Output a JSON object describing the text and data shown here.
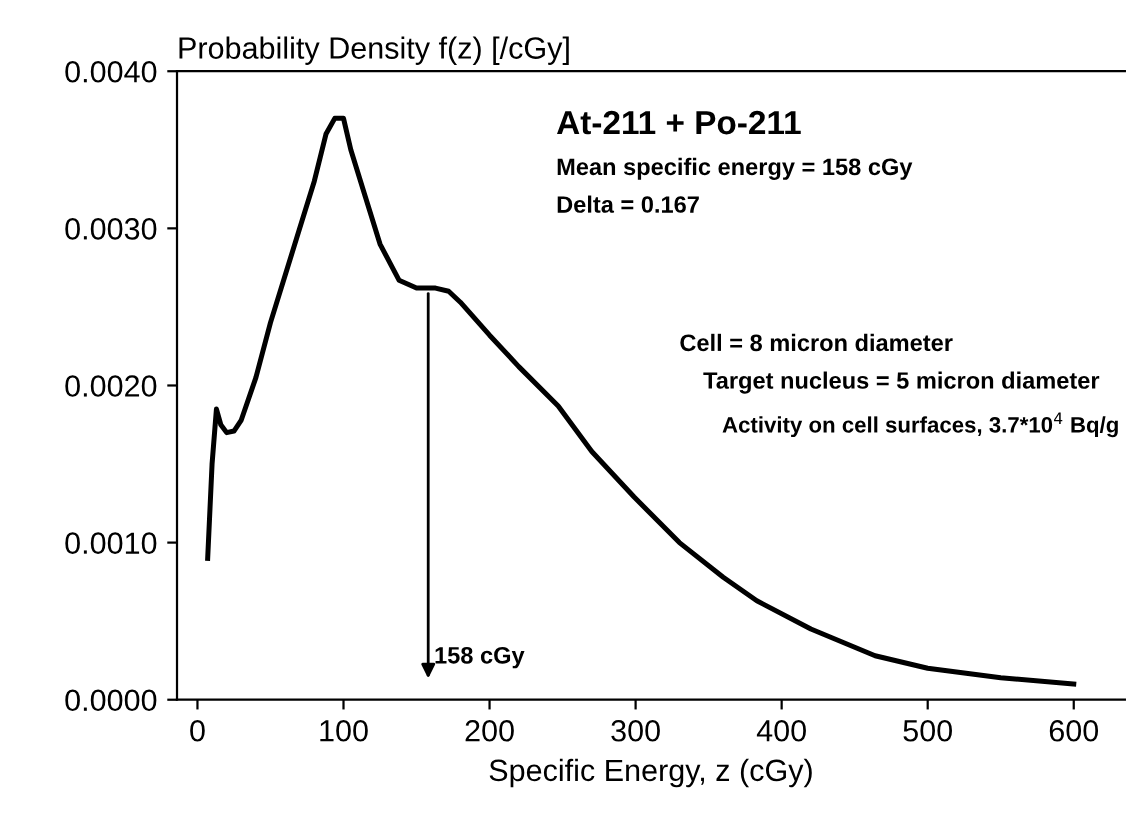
{
  "chart_data": {
    "type": "line",
    "ylabel": "Probability Density f(z) [/cGy]",
    "xlabel": "Specific Energy, z (cGy)",
    "x": [
      7,
      10,
      13,
      16,
      20,
      25,
      30,
      40,
      50,
      60,
      70,
      80,
      88,
      94,
      100,
      105,
      115,
      125,
      138,
      150,
      163,
      172,
      180,
      200,
      220,
      247,
      270,
      299,
      330,
      360,
      383,
      420,
      464,
      500,
      550,
      600
    ],
    "series": [
      {
        "color": "#000000",
        "values": [
          0.0009,
          0.0015,
          0.00185,
          0.00175,
          0.0017,
          0.00171,
          0.00178,
          0.00205,
          0.0024,
          0.0027,
          0.003,
          0.0033,
          0.0036,
          0.0037,
          0.0037,
          0.0035,
          0.0032,
          0.0029,
          0.00267,
          0.00262,
          0.00262,
          0.0026,
          0.00253,
          0.00232,
          0.00212,
          0.00187,
          0.00158,
          0.00129,
          0.001,
          0.00078,
          0.00063,
          0.00045,
          0.00028,
          0.0002,
          0.00014,
          0.0001
        ]
      }
    ],
    "xlim": [
      -14,
      635
    ],
    "ylim": [
      0,
      0.004
    ],
    "xticks": [
      0,
      100,
      200,
      300,
      400,
      500,
      600
    ],
    "yticks": [
      {
        "value": 0,
        "label": "0.0000"
      },
      {
        "value": 0.001,
        "label": "0.0010"
      },
      {
        "value": 0.002,
        "label": "0.0020"
      },
      {
        "value": 0.003,
        "label": "0.0030"
      },
      {
        "value": 0.004,
        "label": "0.0040"
      }
    ],
    "grid": false,
    "legend": false,
    "marker": "none",
    "line_style": "solid",
    "annotations": [
      "At-211 + Po-211",
      "Mean specific energy = 158 cGy",
      "Delta = 0.167",
      "Cell = 8 micron diameter",
      "Target nucleus = 5 micron diameter",
      "Activity on cell surfaces, 3.7*10$^{4}$ Bq/g",
      {
        "text": "158 cGy",
        "x": 158,
        "y": 0.00262
      }
    ]
  }
}
